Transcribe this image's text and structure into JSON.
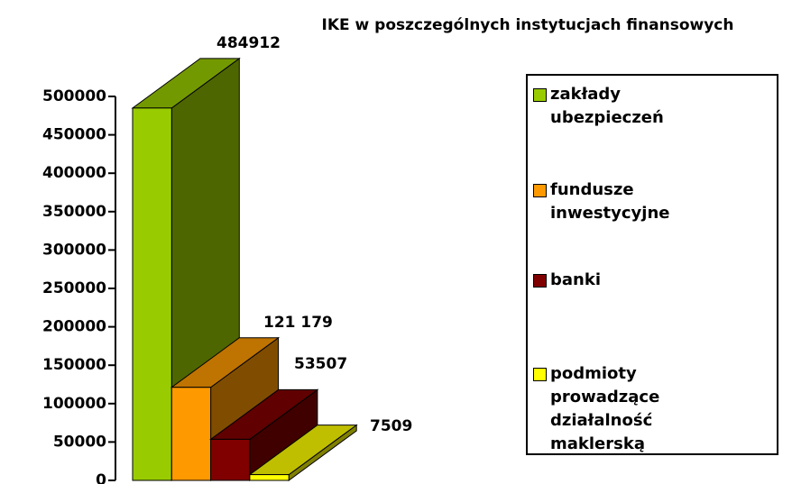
{
  "chart_data": {
    "type": "bar3d",
    "title": "IKE w poszczególnych instytucjach finansowych",
    "categories": [
      "zakłady ubezpieczeń",
      "fundusze inwestycyjne",
      "banki",
      "podmioty prowadzące działalność maklerską"
    ],
    "values": [
      484912,
      121179,
      53507,
      7509
    ],
    "value_labels": [
      "484912",
      "121 179",
      "53507",
      "7509"
    ],
    "colors": [
      "#99cc00",
      "#ff9900",
      "#800000",
      "#ffff00"
    ],
    "ylim": [
      0,
      500000
    ],
    "yticks": [
      0,
      50000,
      100000,
      150000,
      200000,
      250000,
      300000,
      350000,
      400000,
      450000,
      500000
    ],
    "legend": "right"
  }
}
